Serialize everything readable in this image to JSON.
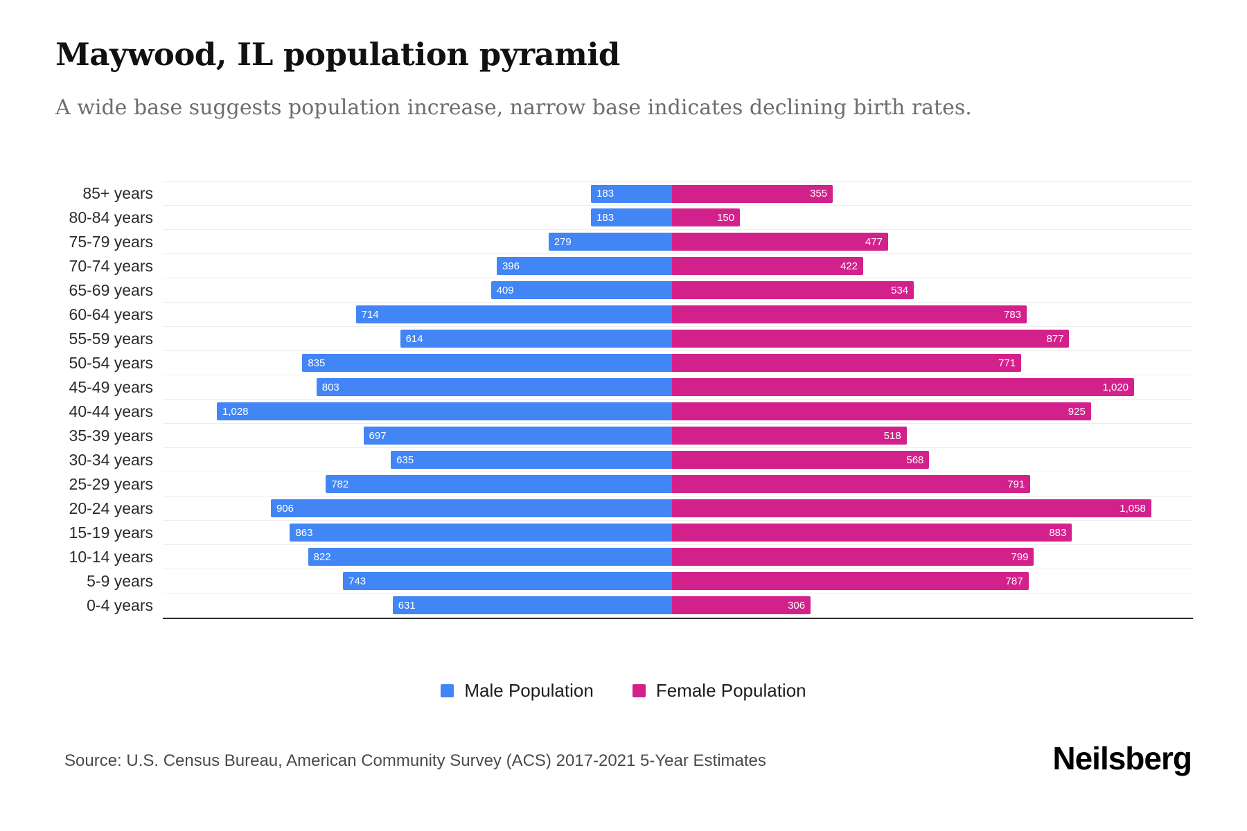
{
  "title": "Maywood, IL population pyramid",
  "subtitle": "A wide base suggests population increase, narrow base indicates declining birth rates.",
  "source": "Source: U.S. Census Bureau, American Community Survey (ACS) 2017-2021 5-Year Estimates",
  "logo": "Neilsberg",
  "colors": {
    "male": "#4285F4",
    "female": "#D3218C",
    "gridline": "#ededed",
    "axis": "#2f2f2f"
  },
  "legend": [
    {
      "label": "Male Population",
      "color": "#4285F4"
    },
    {
      "label": "Female Population",
      "color": "#D3218C"
    }
  ],
  "chart_data": {
    "type": "bar",
    "subtype": "population-pyramid",
    "title": "Maywood, IL population pyramid",
    "xlabel": "",
    "ylabel": "",
    "grid": true,
    "legend_position": "bottom",
    "axis_max_per_side": 1150,
    "categories": [
      "85+ years",
      "80-84 years",
      "75-79 years",
      "70-74 years",
      "65-69 years",
      "60-64 years",
      "55-59 years",
      "50-54 years",
      "45-49 years",
      "40-44 years",
      "35-39 years",
      "30-34 years",
      "25-29 years",
      "20-24 years",
      "15-19 years",
      "10-14 years",
      "5-9 years",
      "0-4 years"
    ],
    "series": [
      {
        "name": "Male Population",
        "color": "#4285F4",
        "direction": "left",
        "values": [
          183,
          183,
          279,
          396,
          409,
          714,
          614,
          835,
          803,
          1028,
          697,
          635,
          782,
          906,
          863,
          822,
          743,
          631
        ]
      },
      {
        "name": "Female Population",
        "color": "#D3218C",
        "direction": "right",
        "values": [
          355,
          150,
          477,
          422,
          534,
          783,
          877,
          771,
          1020,
          925,
          518,
          568,
          791,
          1058,
          883,
          799,
          787,
          306
        ]
      }
    ]
  }
}
